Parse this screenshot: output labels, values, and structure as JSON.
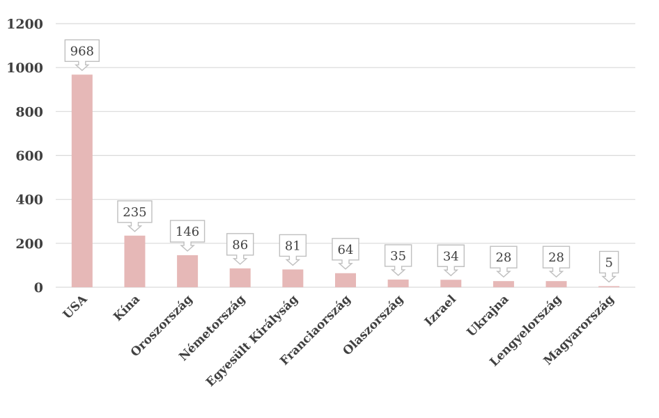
{
  "chart_data": {
    "type": "bar",
    "title": "",
    "xlabel": "",
    "ylabel": "",
    "categories": [
      "USA",
      "Kína",
      "Oroszország",
      "Németország",
      "Egyesült Királyság",
      "Franciaország",
      "Olaszország",
      "Izrael",
      "Ukrajna",
      "Lengyelország",
      "Magyarország"
    ],
    "series": [
      {
        "values": [
          968,
          235,
          146,
          86,
          81,
          64,
          35,
          34,
          28,
          28,
          5
        ],
        "color": "#e6b8b7"
      }
    ],
    "ylim": [
      0,
      1200
    ],
    "yticks": [
      0,
      200,
      400,
      600,
      800,
      1000,
      1200
    ],
    "grid": true,
    "legend": "none",
    "data_labels": true,
    "colors": {
      "bar": "#e6b8b7",
      "grid": "#d9d9d9",
      "text": "#404040",
      "callout_border": "#bfbfbf"
    }
  }
}
